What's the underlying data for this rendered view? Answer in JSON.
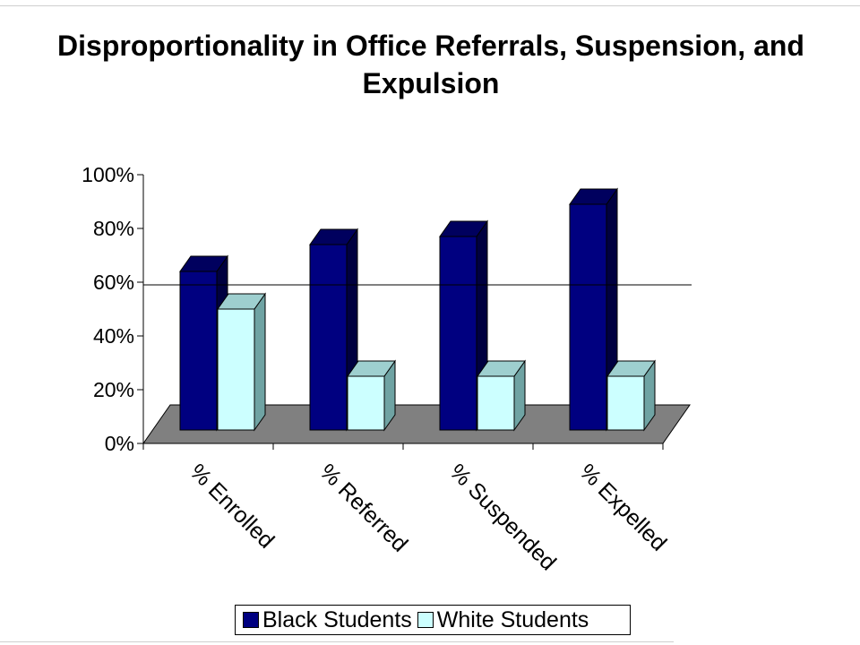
{
  "chart_data": {
    "type": "bar",
    "title": "Disproportionality in Office Referrals, Suspension, and Expulsion",
    "categories": [
      "% Enrolled",
      "% Referred",
      "% Suspended",
      "% Expelled"
    ],
    "series": [
      {
        "name": "Black Students",
        "values": [
          59,
          69,
          72,
          84
        ],
        "color": "#000080"
      },
      {
        "name": "White Students",
        "values": [
          45,
          20,
          20,
          20
        ],
        "color": "#ccffff"
      }
    ],
    "y_ticks": [
      "0%",
      "20%",
      "40%",
      "60%",
      "80%",
      "100%"
    ],
    "ylim": [
      0,
      100
    ],
    "reference_line": 59,
    "style": "3d-column",
    "floor_color": "#808080",
    "grid": false,
    "legend_position": "bottom"
  }
}
